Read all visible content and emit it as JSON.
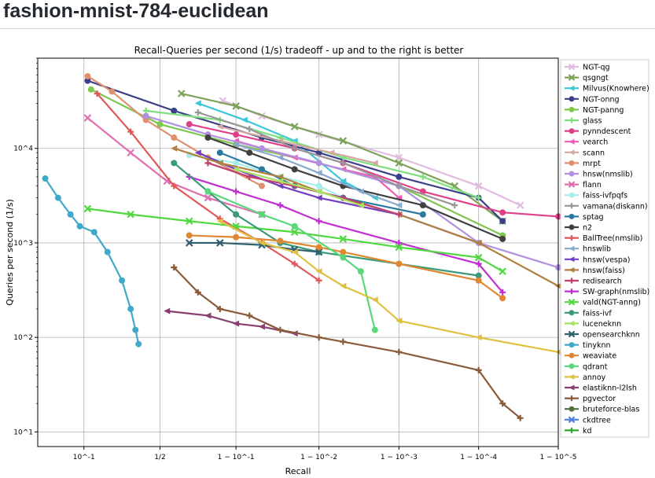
{
  "page": {
    "title": "fashion-mnist-784-euclidean"
  },
  "chart_data": {
    "type": "line",
    "title": "Recall-Queries per second (1/s) tradeoff - up and to the right is better",
    "xlabel": "Recall",
    "ylabel": "Queries per second (1/s)",
    "x_scale": "logit (1 - recall)",
    "y_scale": "log",
    "ylim": [
      7,
      90000
    ],
    "grid": true,
    "legend_position": "right",
    "x_ticks": [
      {
        "value": 0.1,
        "label": "10^-1"
      },
      {
        "value": 0.5,
        "label": "1/2"
      },
      {
        "value": 0.9,
        "label": "1 − 10^-1"
      },
      {
        "value": 0.99,
        "label": "1 − 10^-2"
      },
      {
        "value": 0.999,
        "label": "1 − 10^-3"
      },
      {
        "value": 0.9999,
        "label": "1 − 10^-4"
      },
      {
        "value": 0.99999,
        "label": "1 − 10^-5"
      }
    ],
    "y_ticks": [
      {
        "value": 10,
        "label": "10^1"
      },
      {
        "value": 100,
        "label": "10^2"
      },
      {
        "value": 1000,
        "label": "10^3"
      },
      {
        "value": 10000,
        "label": "10^4"
      }
    ],
    "series": [
      {
        "name": "NGT-qg",
        "color": "#e0bce0",
        "marker": "x",
        "points": [
          [
            0.86,
            32000
          ],
          [
            0.95,
            22000
          ],
          [
            0.99,
            14000
          ],
          [
            0.999,
            8000
          ],
          [
            0.9999,
            4000
          ],
          [
            0.99997,
            2500
          ]
        ]
      },
      {
        "name": "qsgngt",
        "color": "#7da35a",
        "marker": "x",
        "points": [
          [
            0.65,
            38000
          ],
          [
            0.9,
            28000
          ],
          [
            0.98,
            17000
          ],
          [
            0.995,
            12000
          ],
          [
            0.999,
            7000
          ],
          [
            0.9998,
            4000
          ],
          [
            0.99995,
            1700
          ]
        ]
      },
      {
        "name": "Milvus(Knowhere)",
        "color": "#3cc8d8",
        "marker": "tri",
        "points": [
          [
            0.75,
            30000
          ],
          [
            0.92,
            20000
          ],
          [
            0.98,
            12000
          ],
          [
            0.995,
            4500
          ],
          [
            0.998,
            3000
          ]
        ]
      },
      {
        "name": "NGT-onng",
        "color": "#3a3f88",
        "marker": "o",
        "points": [
          [
            0.11,
            52000
          ],
          [
            0.6,
            25000
          ],
          [
            0.95,
            13000
          ],
          [
            0.99,
            9000
          ],
          [
            0.999,
            5000
          ],
          [
            0.9999,
            3000
          ],
          [
            0.99995,
            1700
          ]
        ]
      },
      {
        "name": "NGT-panng",
        "color": "#7ec850",
        "marker": "o",
        "points": [
          [
            0.12,
            42000
          ],
          [
            0.5,
            18000
          ],
          [
            0.9,
            11000
          ],
          [
            0.99,
            7000
          ],
          [
            0.999,
            4000
          ],
          [
            0.99995,
            1200
          ]
        ]
      },
      {
        "name": "glass",
        "color": "#7fe07f",
        "marker": "plus",
        "points": [
          [
            0.4,
            25000
          ],
          [
            0.85,
            20000
          ],
          [
            0.97,
            13000
          ],
          [
            0.995,
            8000
          ],
          [
            0.9995,
            5000
          ],
          [
            0.9999,
            3000
          ]
        ]
      },
      {
        "name": "pynndescent",
        "color": "#e0408a",
        "marker": "o",
        "points": [
          [
            0.7,
            18000
          ],
          [
            0.9,
            14000
          ],
          [
            0.98,
            10000
          ],
          [
            0.995,
            7000
          ],
          [
            0.9995,
            3500
          ],
          [
            0.99995,
            2100
          ],
          [
            0.99999,
            1900
          ]
        ]
      },
      {
        "name": "vearch",
        "color": "#ee5cb4",
        "marker": "tri",
        "points": [
          [
            0.9,
            12000
          ],
          [
            0.98,
            8000
          ],
          [
            0.995,
            6000
          ],
          [
            0.998,
            5000
          ],
          [
            0.999,
            3000
          ]
        ]
      },
      {
        "name": "scann",
        "color": "#d4a8a0",
        "marker": "tri",
        "points": [
          [
            0.85,
            17000
          ],
          [
            0.97,
            12000
          ],
          [
            0.993,
            9000
          ],
          [
            0.998,
            7000
          ]
        ]
      },
      {
        "name": "mrpt",
        "color": "#e09070",
        "marker": "o",
        "points": [
          [
            0.11,
            58000
          ],
          [
            0.2,
            40000
          ],
          [
            0.4,
            20000
          ],
          [
            0.6,
            13000
          ],
          [
            0.8,
            8000
          ],
          [
            0.95,
            4000
          ]
        ]
      },
      {
        "name": "hnsw(nmslib)",
        "color": "#b090e0",
        "marker": "o",
        "points": [
          [
            0.4,
            22000
          ],
          [
            0.8,
            14000
          ],
          [
            0.95,
            10000
          ],
          [
            0.99,
            7000
          ],
          [
            0.999,
            4000
          ],
          [
            0.9999,
            1000
          ],
          [
            0.99999,
            550
          ]
        ]
      },
      {
        "name": "flann",
        "color": "#e070b0",
        "marker": "x",
        "points": [
          [
            0.11,
            21000
          ],
          [
            0.3,
            9000
          ],
          [
            0.55,
            4500
          ],
          [
            0.8,
            3000
          ],
          [
            0.95,
            2000
          ]
        ]
      },
      {
        "name": "faiss-ivfpqfs",
        "color": "#a8ecec",
        "marker": "o",
        "points": [
          [
            0.7,
            8500
          ],
          [
            0.9,
            7000
          ],
          [
            0.97,
            5000
          ],
          [
            0.99,
            4000
          ],
          [
            0.995,
            3000
          ]
        ]
      },
      {
        "name": "vamana(diskann)",
        "color": "#989898",
        "marker": "plus",
        "points": [
          [
            0.75,
            24000
          ],
          [
            0.93,
            16000
          ],
          [
            0.98,
            10000
          ],
          [
            0.995,
            7000
          ],
          [
            0.999,
            4000
          ],
          [
            0.9998,
            2500
          ]
        ]
      },
      {
        "name": "sptag",
        "color": "#2a7aa0",
        "marker": "o",
        "points": [
          [
            0.85,
            9000
          ],
          [
            0.95,
            6000
          ],
          [
            0.98,
            4000
          ],
          [
            0.995,
            3000
          ],
          [
            0.9995,
            2000
          ]
        ]
      },
      {
        "name": "n2",
        "color": "#404040",
        "marker": "o",
        "points": [
          [
            0.8,
            13000
          ],
          [
            0.93,
            9000
          ],
          [
            0.98,
            6000
          ],
          [
            0.995,
            4000
          ],
          [
            0.9995,
            2500
          ],
          [
            0.99995,
            1100
          ]
        ]
      },
      {
        "name": "BallTree(nmslib)",
        "color": "#e05858",
        "marker": "plus",
        "points": [
          [
            0.14,
            38000
          ],
          [
            0.3,
            15000
          ],
          [
            0.6,
            4000
          ],
          [
            0.85,
            1800
          ],
          [
            0.95,
            1000
          ],
          [
            0.98,
            600
          ],
          [
            0.99,
            400
          ]
        ]
      },
      {
        "name": "hnswlib",
        "color": "#88aacc",
        "marker": "tri",
        "points": [
          [
            0.9,
            11000
          ],
          [
            0.97,
            8000
          ],
          [
            0.99,
            5500
          ],
          [
            0.997,
            3500
          ],
          [
            0.999,
            2500
          ]
        ]
      },
      {
        "name": "hnsw(vespa)",
        "color": "#7040c0",
        "marker": "tri",
        "points": [
          [
            0.75,
            9000
          ],
          [
            0.9,
            6000
          ],
          [
            0.97,
            4000
          ],
          [
            0.99,
            3000
          ],
          [
            0.999,
            2000
          ],
          [
            0.9999,
            1000
          ]
        ]
      },
      {
        "name": "hnsw(faiss)",
        "color": "#b08040",
        "marker": "tri",
        "points": [
          [
            0.6,
            10000
          ],
          [
            0.85,
            7000
          ],
          [
            0.97,
            5000
          ],
          [
            0.99,
            3500
          ],
          [
            0.999,
            2000
          ],
          [
            0.9999,
            1000
          ],
          [
            0.99999,
            350
          ]
        ]
      },
      {
        "name": "redisearch",
        "color": "#c04070",
        "marker": "plus",
        "points": [
          [
            0.8,
            7000
          ],
          [
            0.93,
            5000
          ],
          [
            0.98,
            4000
          ],
          [
            0.995,
            3000
          ],
          [
            0.999,
            2000
          ]
        ]
      },
      {
        "name": "SW-graph(nmslib)",
        "color": "#c030d0",
        "marker": "plus",
        "points": [
          [
            0.7,
            5000
          ],
          [
            0.9,
            3500
          ],
          [
            0.97,
            2500
          ],
          [
            0.99,
            1700
          ],
          [
            0.999,
            1000
          ],
          [
            0.9999,
            600
          ],
          [
            0.99995,
            300
          ]
        ]
      },
      {
        "name": "vald(NGT-anng)",
        "color": "#50d840",
        "marker": "x",
        "points": [
          [
            0.11,
            2300
          ],
          [
            0.3,
            2000
          ],
          [
            0.7,
            1700
          ],
          [
            0.9,
            1500
          ],
          [
            0.98,
            1300
          ],
          [
            0.995,
            1100
          ],
          [
            0.999,
            900
          ],
          [
            0.9999,
            700
          ],
          [
            0.99995,
            500
          ]
        ]
      },
      {
        "name": "faiss-ivf",
        "color": "#3a9a7a",
        "marker": "o",
        "points": [
          [
            0.6,
            7000
          ],
          [
            0.8,
            3500
          ],
          [
            0.9,
            2000
          ],
          [
            0.97,
            1000
          ],
          [
            0.99,
            800
          ],
          [
            0.999,
            600
          ],
          [
            0.9999,
            450
          ]
        ]
      },
      {
        "name": "luceneknn",
        "color": "#a8e060",
        "marker": "tri",
        "points": [
          [
            0.9,
            6000
          ],
          [
            0.97,
            4500
          ],
          [
            0.99,
            3500
          ],
          [
            0.997,
            2500
          ]
        ]
      },
      {
        "name": "opensearchknn",
        "color": "#306070",
        "marker": "x",
        "points": [
          [
            0.7,
            1000
          ],
          [
            0.85,
            1000
          ],
          [
            0.95,
            950
          ],
          [
            0.98,
            850
          ],
          [
            0.99,
            800
          ]
        ]
      },
      {
        "name": "tinyknn",
        "color": "#40a8c8",
        "marker": "o",
        "points": [
          [
            0.035,
            4800
          ],
          [
            0.05,
            3000
          ],
          [
            0.07,
            2000
          ],
          [
            0.09,
            1500
          ],
          [
            0.13,
            1300
          ],
          [
            0.18,
            800
          ],
          [
            0.25,
            400
          ],
          [
            0.3,
            200
          ],
          [
            0.33,
            120
          ],
          [
            0.35,
            85
          ]
        ]
      },
      {
        "name": "weaviate",
        "color": "#e08830",
        "marker": "o",
        "points": [
          [
            0.7,
            1200
          ],
          [
            0.9,
            1150
          ],
          [
            0.97,
            1050
          ],
          [
            0.99,
            900
          ],
          [
            0.995,
            800
          ],
          [
            0.999,
            600
          ],
          [
            0.9999,
            400
          ],
          [
            0.99995,
            260
          ]
        ]
      },
      {
        "name": "qdrant",
        "color": "#58d878",
        "marker": "o",
        "points": [
          [
            0.8,
            3500
          ],
          [
            0.95,
            2000
          ],
          [
            0.98,
            1500
          ],
          [
            0.995,
            700
          ],
          [
            0.997,
            500
          ],
          [
            0.998,
            120
          ]
        ]
      },
      {
        "name": "annoy",
        "color": "#e0c040",
        "marker": "tri",
        "points": [
          [
            0.85,
            1700
          ],
          [
            0.95,
            1000
          ],
          [
            0.98,
            800
          ],
          [
            0.99,
            500
          ],
          [
            0.995,
            350
          ],
          [
            0.998,
            250
          ],
          [
            0.999,
            150
          ],
          [
            0.9999,
            100
          ],
          [
            0.99999,
            70
          ]
        ]
      },
      {
        "name": "elastiknn-l2lsh",
        "color": "#884070",
        "marker": "tri",
        "points": [
          [
            0.55,
            190
          ],
          [
            0.8,
            170
          ],
          [
            0.9,
            140
          ],
          [
            0.95,
            130
          ],
          [
            0.98,
            110
          ]
        ]
      },
      {
        "name": "pgvector",
        "color": "#8a5a3a",
        "marker": "plus",
        "points": [
          [
            0.6,
            550
          ],
          [
            0.75,
            300
          ],
          [
            0.85,
            200
          ],
          [
            0.93,
            170
          ],
          [
            0.97,
            120
          ],
          [
            0.99,
            100
          ],
          [
            0.995,
            90
          ],
          [
            0.999,
            70
          ],
          [
            0.9999,
            45
          ],
          [
            0.99995,
            20
          ],
          [
            0.99997,
            14
          ]
        ]
      },
      {
        "name": "bruteforce-blas",
        "color": "#507040",
        "marker": "o",
        "points": []
      },
      {
        "name": "ckdtree",
        "color": "#5080e0",
        "marker": "x",
        "points": []
      },
      {
        "name": "kd",
        "color": "#30a830",
        "marker": "plus",
        "points": []
      }
    ]
  }
}
